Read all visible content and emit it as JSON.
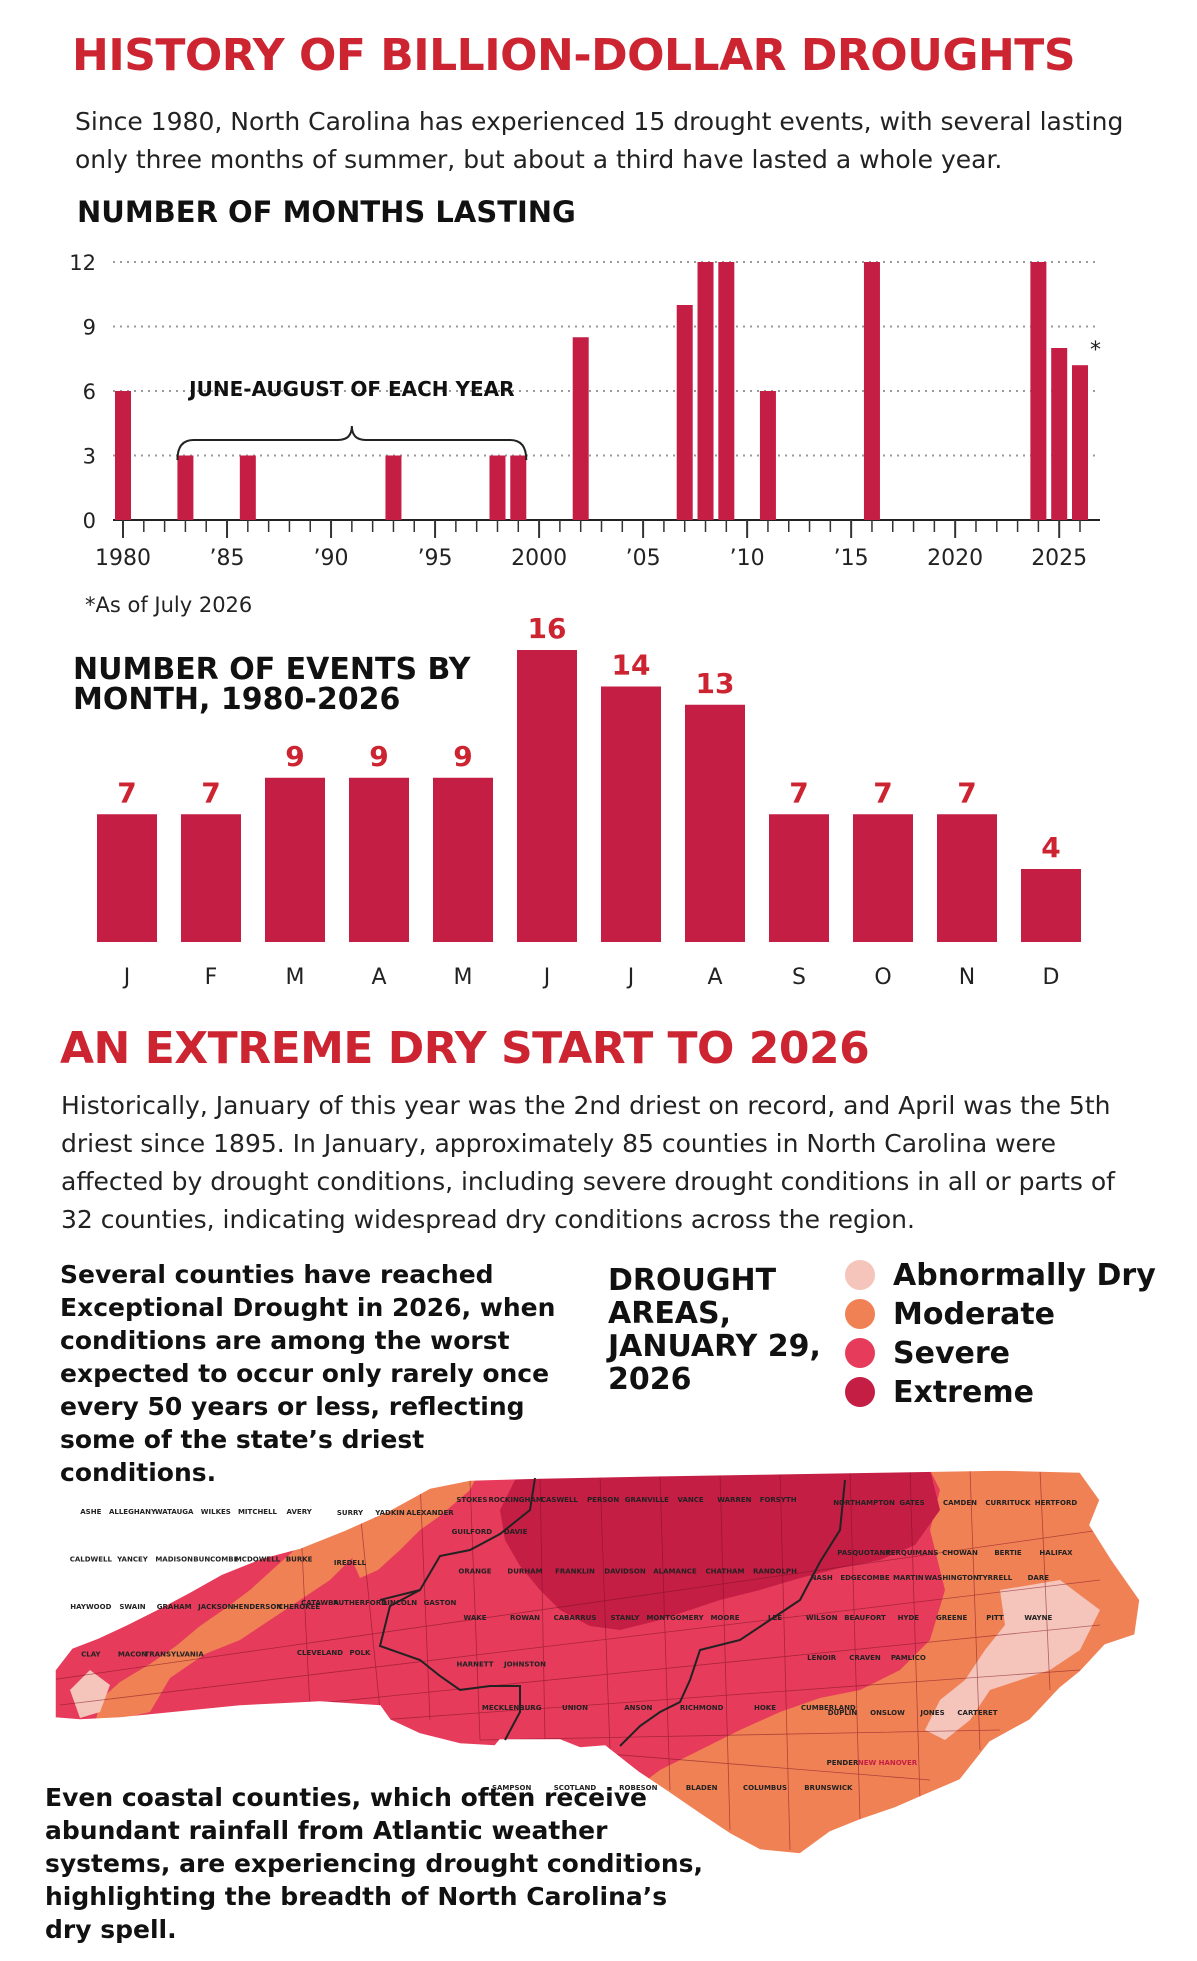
{
  "section1": {
    "title": "HISTORY OF BILLION-DOLLAR DROUGHTS",
    "intro": "Since 1980, North Carolina has experienced 15 drought events, with several lasting only three months of summer, but about a third have lasted a whole year."
  },
  "section2": {
    "title": "AN EXTREME DRY START TO 2026",
    "intro": "Historically, January of this year was the 2nd driest on record, and April was the 5th driest since 1895. In January, approximately 85 counties in North Carolina were affected by drought conditions, including severe drought conditions in all or parts of 32 counties, indicating widespread dry conditions across the region.",
    "left_note": "Several counties have reached Exceptional Drought in 2026, when conditions are among the worst expected to occur only rarely once every 50 years or less, reflecting some of the state’s driest conditions.",
    "coastal_note": "Even coastal counties, which often receive abundant rainfall from Atlantic weather systems, are experiencing drought conditions, highlighting the breadth of North Carolina’s dry spell."
  },
  "map": {
    "title": "DROUGHT AREAS, JANUARY 29, 2026",
    "legend": [
      {
        "label": "Abnormally Dry",
        "color": "#f5c4bb"
      },
      {
        "label": "Moderate",
        "color": "#f08155"
      },
      {
        "label": "Severe",
        "color": "#e63b5b"
      },
      {
        "label": "Extreme",
        "color": "#c41e45"
      }
    ],
    "county_labels": [
      {
        "name": "ASHE",
        "area": "far-west"
      },
      {
        "name": "ALLEGHANY",
        "area": "far-west"
      },
      {
        "name": "SURRY",
        "area": "northwest"
      },
      {
        "name": "STOKES",
        "area": "north-central"
      },
      {
        "name": "ROCKINGHAM",
        "area": "north-central"
      },
      {
        "name": "CASWELL",
        "area": "north-central"
      },
      {
        "name": "PERSON",
        "area": "north-central"
      },
      {
        "name": "GRANVILLE",
        "area": "north-central"
      },
      {
        "name": "VANCE",
        "area": "north-central"
      },
      {
        "name": "WARREN",
        "area": "north-central"
      },
      {
        "name": "NORTHAMPTON",
        "area": "northeast"
      },
      {
        "name": "GATES",
        "area": "northeast"
      },
      {
        "name": "CAMDEN",
        "area": "northeast"
      },
      {
        "name": "CURRITUCK",
        "area": "northeast"
      },
      {
        "name": "HERTFORD",
        "area": "northeast"
      },
      {
        "name": "PASQUOTANK",
        "area": "northeast"
      },
      {
        "name": "PERQUIMANS",
        "area": "northeast"
      },
      {
        "name": "CHOWAN",
        "area": "northeast"
      },
      {
        "name": "BERTIE",
        "area": "northeast"
      },
      {
        "name": "HALIFAX",
        "area": "northeast"
      },
      {
        "name": "WATAUGA",
        "area": "far-west"
      },
      {
        "name": "WILKES",
        "area": "far-west"
      },
      {
        "name": "YADKIN",
        "area": "northwest"
      },
      {
        "name": "FORSYTH",
        "area": "north-central"
      },
      {
        "name": "GUILFORD",
        "area": "north-central"
      },
      {
        "name": "ORANGE",
        "area": "central"
      },
      {
        "name": "DURHAM",
        "area": "central"
      },
      {
        "name": "FRANKLIN",
        "area": "central"
      },
      {
        "name": "NASH",
        "area": "east"
      },
      {
        "name": "EDGECOMBE",
        "area": "east"
      },
      {
        "name": "MARTIN",
        "area": "east"
      },
      {
        "name": "WASHINGTON",
        "area": "east"
      },
      {
        "name": "TYRRELL",
        "area": "east"
      },
      {
        "name": "DARE",
        "area": "east"
      },
      {
        "name": "MITCHELL",
        "area": "far-west"
      },
      {
        "name": "AVERY",
        "area": "far-west"
      },
      {
        "name": "CALDWELL",
        "area": "far-west"
      },
      {
        "name": "ALEXANDER",
        "area": "northwest"
      },
      {
        "name": "IREDELL",
        "area": "northwest"
      },
      {
        "name": "DAVIE",
        "area": "north-central"
      },
      {
        "name": "DAVIDSON",
        "area": "central"
      },
      {
        "name": "ALAMANCE",
        "area": "central"
      },
      {
        "name": "CHATHAM",
        "area": "central"
      },
      {
        "name": "RANDOLPH",
        "area": "central"
      },
      {
        "name": "WAKE",
        "area": "central"
      },
      {
        "name": "WILSON",
        "area": "east"
      },
      {
        "name": "BEAUFORT",
        "area": "east"
      },
      {
        "name": "HYDE",
        "area": "east"
      },
      {
        "name": "YANCEY",
        "area": "far-west"
      },
      {
        "name": "MADISON",
        "area": "far-west"
      },
      {
        "name": "BUNCOMBE",
        "area": "far-west"
      },
      {
        "name": "MCDOWELL",
        "area": "far-west"
      },
      {
        "name": "BURKE",
        "area": "far-west"
      },
      {
        "name": "CATAWBA",
        "area": "west"
      },
      {
        "name": "ROWAN",
        "area": "central"
      },
      {
        "name": "HAYWOOD",
        "area": "far-west"
      },
      {
        "name": "SWAIN",
        "area": "far-west"
      },
      {
        "name": "GRAHAM",
        "area": "far-west"
      },
      {
        "name": "JACKSON",
        "area": "far-west"
      },
      {
        "name": "HENDERSON",
        "area": "far-west"
      },
      {
        "name": "RUTHERFORD",
        "area": "west"
      },
      {
        "name": "LINCOLN",
        "area": "west"
      },
      {
        "name": "GASTON",
        "area": "west"
      },
      {
        "name": "CLEVELAND",
        "area": "west"
      },
      {
        "name": "CABARRUS",
        "area": "central"
      },
      {
        "name": "STANLY",
        "area": "central"
      },
      {
        "name": "MONTGOMERY",
        "area": "central"
      },
      {
        "name": "MOORE",
        "area": "central"
      },
      {
        "name": "LEE",
        "area": "central"
      },
      {
        "name": "HARNETT",
        "area": "central"
      },
      {
        "name": "JOHNSTON",
        "area": "central"
      },
      {
        "name": "GREENE",
        "area": "east"
      },
      {
        "name": "PITT",
        "area": "east"
      },
      {
        "name": "WAYNE",
        "area": "east"
      },
      {
        "name": "LENOIR",
        "area": "east"
      },
      {
        "name": "CRAVEN",
        "area": "east"
      },
      {
        "name": "PAMLICO",
        "area": "east"
      },
      {
        "name": "CHEROKEE",
        "area": "far-west"
      },
      {
        "name": "CLAY",
        "area": "far-west"
      },
      {
        "name": "MACON",
        "area": "far-west"
      },
      {
        "name": "TRANSYLVANIA",
        "area": "far-west"
      },
      {
        "name": "POLK",
        "area": "west"
      },
      {
        "name": "MECKLENBURG",
        "area": "south"
      },
      {
        "name": "UNION",
        "area": "south"
      },
      {
        "name": "ANSON",
        "area": "south"
      },
      {
        "name": "RICHMOND",
        "area": "south"
      },
      {
        "name": "HOKE",
        "area": "south"
      },
      {
        "name": "CUMBERLAND",
        "area": "south"
      },
      {
        "name": "SAMPSON",
        "area": "south"
      },
      {
        "name": "DUPLIN",
        "area": "southeast"
      },
      {
        "name": "ONSLOW",
        "area": "southeast"
      },
      {
        "name": "JONES",
        "area": "southeast"
      },
      {
        "name": "CARTERET",
        "area": "southeast"
      },
      {
        "name": "SCOTLAND",
        "area": "south"
      },
      {
        "name": "ROBESON",
        "area": "south"
      },
      {
        "name": "BLADEN",
        "area": "south"
      },
      {
        "name": "PENDER",
        "area": "southeast"
      },
      {
        "name": "COLUMBUS",
        "area": "south"
      },
      {
        "name": "BRUNSWICK",
        "area": "south"
      },
      {
        "name": "NEW HANOVER",
        "area": "southeast"
      }
    ]
  },
  "chart_data": [
    {
      "type": "bar",
      "title": "NUMBER OF MONTHS LASTING",
      "x": [
        1980,
        1983,
        1986,
        1993,
        1998,
        1999,
        2002,
        2007,
        2008,
        2009,
        2011,
        2016,
        2024,
        2025,
        2026
      ],
      "values": [
        6,
        3,
        3,
        3,
        3,
        3,
        8.5,
        10,
        12,
        12,
        6,
        12,
        12,
        8,
        7.2
      ],
      "xlim": [
        1980,
        2026
      ],
      "ylim": [
        0,
        12
      ],
      "yticks": [
        "0",
        "3",
        "6",
        "9",
        "12"
      ],
      "xticks": [
        {
          "year": 1980,
          "label": "1980"
        },
        {
          "year": 1985,
          "label": "’85"
        },
        {
          "year": 1990,
          "label": "’90"
        },
        {
          "year": 1995,
          "label": "’95"
        },
        {
          "year": 2000,
          "label": "2000"
        },
        {
          "year": 2005,
          "label": "’05"
        },
        {
          "year": 2010,
          "label": "’10"
        },
        {
          "year": 2015,
          "label": "’15"
        },
        {
          "year": 2020,
          "label": "2020"
        },
        {
          "year": 2025,
          "label": "2025"
        }
      ],
      "grid": true,
      "color": "#c41e45",
      "annotations": [
        {
          "text": "JUNE-AUGUST OF EACH YEAR",
          "from_year": 1983,
          "to_year": 1999
        },
        {
          "text": "*",
          "year": 2026
        }
      ],
      "footnote": "*As of July 2026"
    },
    {
      "type": "bar",
      "title": "NUMBER OF EVENTS BY MONTH, 1980-2026",
      "categories": [
        "J",
        "F",
        "M",
        "A",
        "M",
        "J",
        "J",
        "A",
        "S",
        "O",
        "N",
        "D"
      ],
      "values": [
        7,
        7,
        9,
        9,
        9,
        16,
        14,
        13,
        7,
        7,
        7,
        4
      ],
      "color": "#c41e45",
      "label_color": "#cc2431"
    }
  ]
}
